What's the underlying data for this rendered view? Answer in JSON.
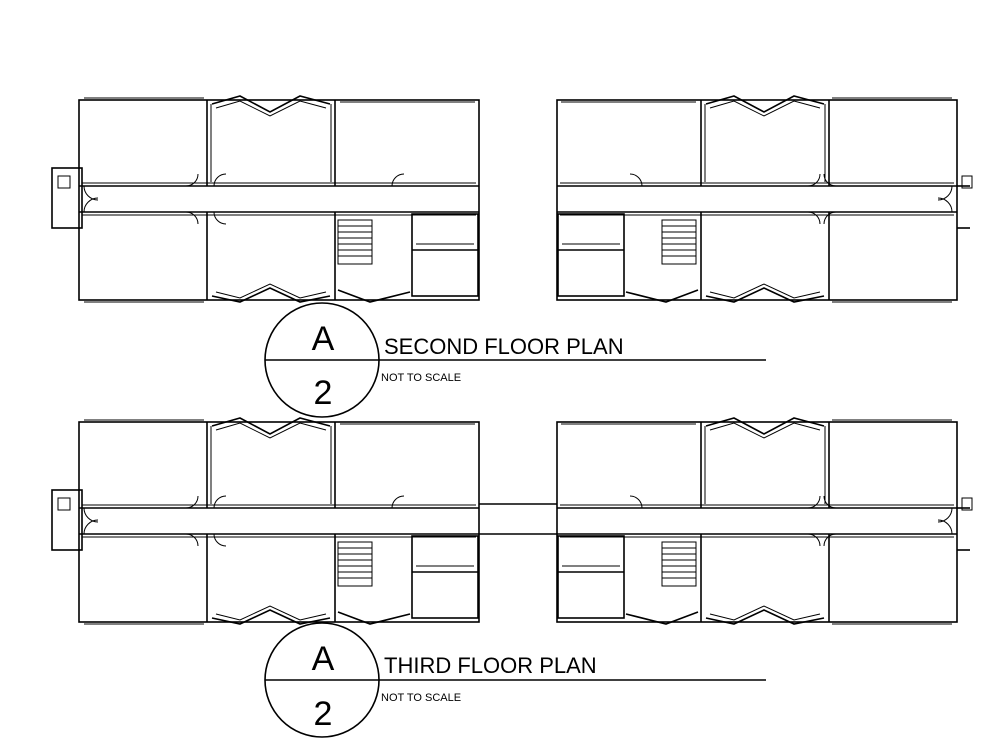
{
  "plans": [
    {
      "title": "SECOND FLOOR PLAN",
      "scale_note": "NOT TO SCALE",
      "detail_letter": "A",
      "sheet_number": "2"
    },
    {
      "title": "THIRD FLOOR PLAN",
      "scale_note": "NOT TO SCALE",
      "detail_letter": "A",
      "sheet_number": "2"
    }
  ]
}
